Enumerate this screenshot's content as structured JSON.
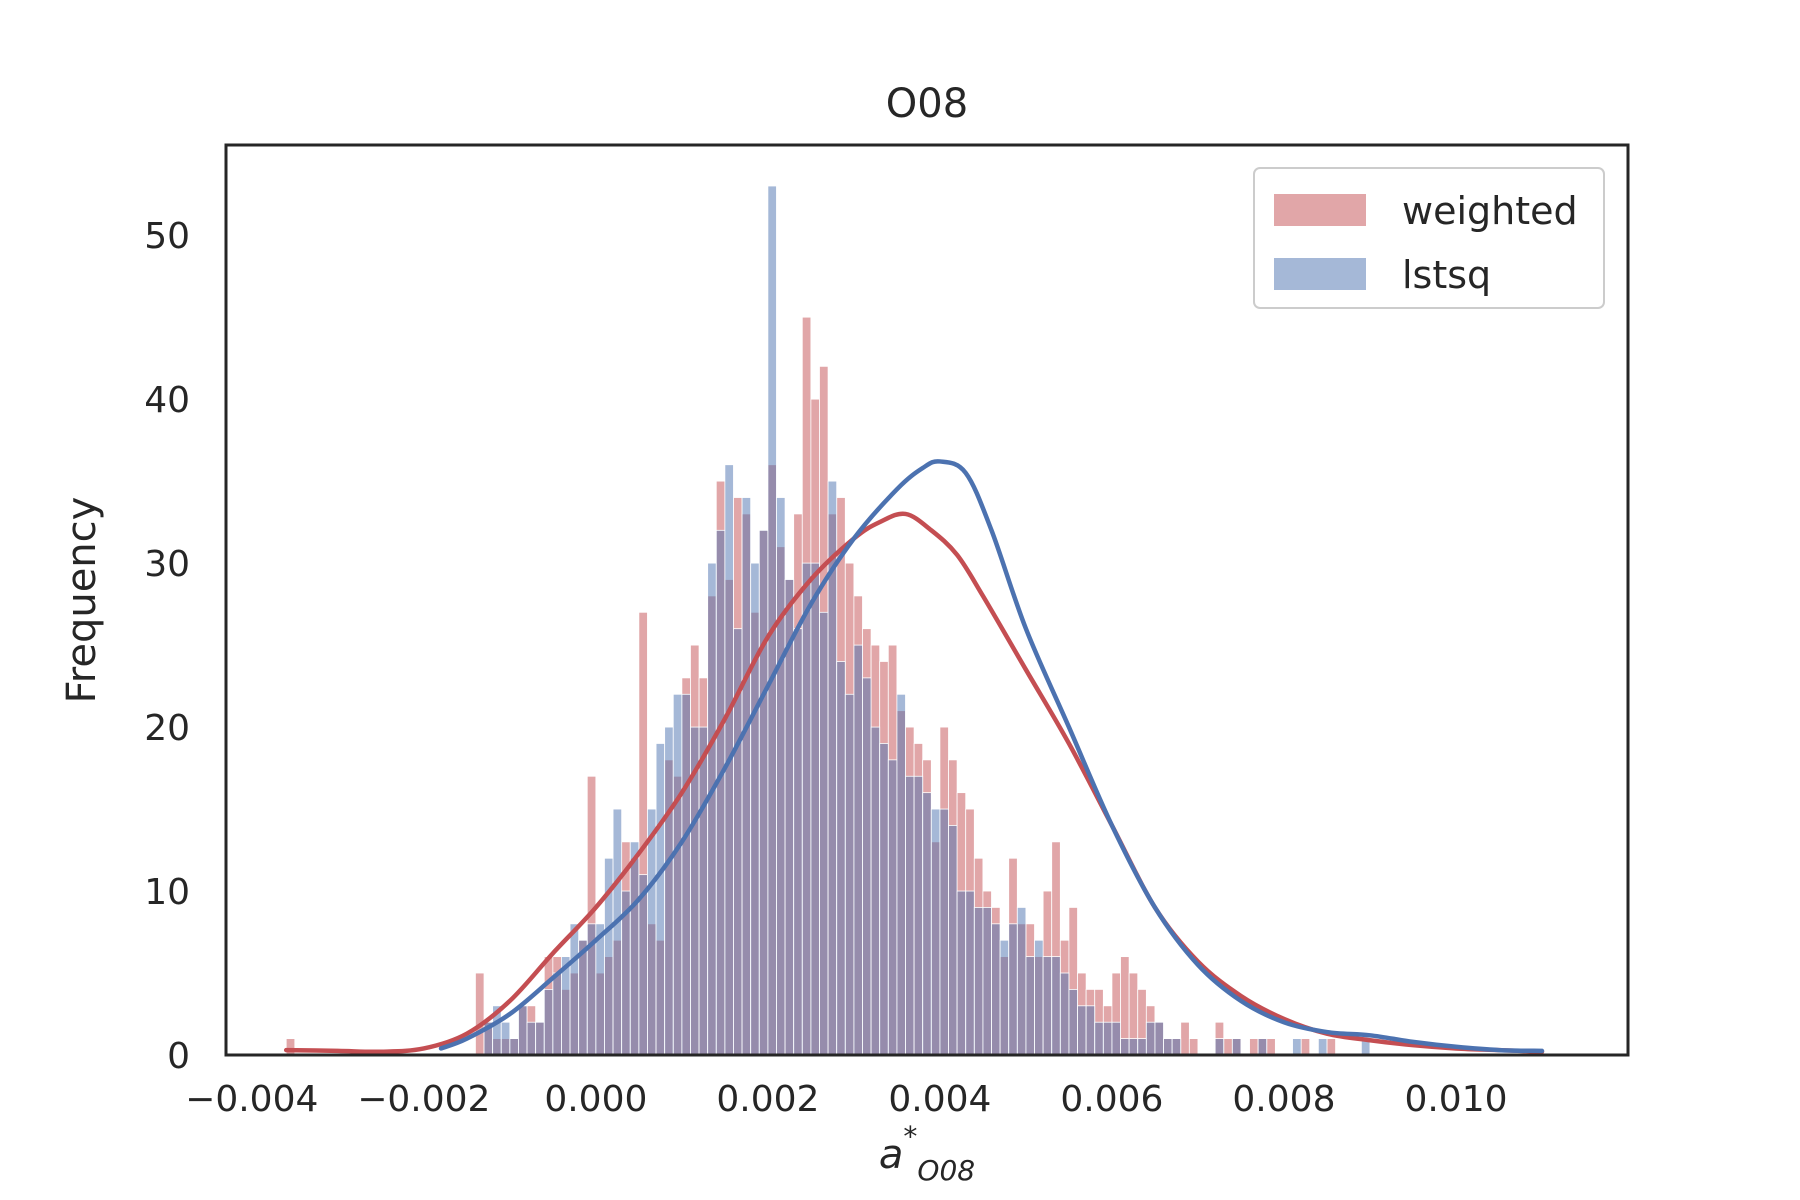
{
  "chart_data": {
    "type": "histogram",
    "title": "O08",
    "xlabel": "a*_O08",
    "xlabel_parts": {
      "base": "a",
      "sup": "*",
      "sub": "O08"
    },
    "ylabel": "Frequency",
    "xlim": [
      -0.0043,
      0.012
    ],
    "ylim": [
      0,
      55.5
    ],
    "xticks": [
      -0.004,
      -0.002,
      0.0,
      0.002,
      0.004,
      0.006,
      0.008,
      0.01
    ],
    "xtick_labels": [
      "−0.004",
      "−0.002",
      "0.000",
      "0.002",
      "0.004",
      "0.006",
      "0.008",
      "0.010"
    ],
    "yticks": [
      0,
      10,
      20,
      30,
      40,
      50
    ],
    "ytick_labels": [
      "0",
      "10",
      "20",
      "30",
      "40",
      "50"
    ],
    "grid": false,
    "legend_position": "top-right",
    "series": [
      {
        "name": "weighted",
        "color": "#c44e52",
        "bin_start": -0.0036,
        "bin_width": 0.0001,
        "counts": [
          1,
          0,
          0,
          0,
          0,
          0,
          0,
          0,
          0,
          0,
          0,
          0,
          0,
          0,
          0,
          0,
          0,
          0,
          0,
          0,
          0,
          0,
          5,
          2,
          1,
          1,
          1,
          3,
          3,
          2,
          6,
          6,
          4,
          5,
          7,
          17,
          5,
          6,
          7,
          13,
          12,
          27,
          8,
          7,
          18,
          17,
          23,
          25,
          23,
          28,
          35,
          29,
          34,
          33,
          27,
          32,
          36,
          31,
          29,
          33,
          45,
          40,
          42,
          33,
          34,
          30,
          28,
          26,
          25,
          24,
          25,
          21,
          20,
          19,
          18,
          13,
          20,
          18,
          16,
          15,
          12,
          10,
          9,
          6,
          12,
          8,
          8,
          6,
          10,
          13,
          7,
          9,
          5,
          4,
          4,
          3,
          5,
          6,
          5,
          4,
          3,
          2,
          1,
          1,
          2,
          1,
          0,
          0,
          2,
          1,
          1,
          0,
          1,
          1,
          1,
          0,
          0,
          0,
          1,
          0,
          0,
          1
        ]
      },
      {
        "name": "lstsq",
        "color": "#4c72b0",
        "bin_start": -0.0018,
        "bin_width": 0.0001,
        "counts": [
          0,
          0,
          0,
          0,
          0,
          2,
          3,
          2,
          1,
          3,
          2,
          2,
          4,
          5,
          6,
          8,
          7,
          8,
          8,
          12,
          15,
          10,
          13,
          11,
          15,
          19,
          20,
          22,
          22,
          20,
          20,
          30,
          32,
          36,
          26,
          34,
          30,
          32,
          53,
          34,
          29,
          26,
          30,
          30,
          27,
          35,
          24,
          22,
          25,
          23,
          20,
          19,
          18,
          22,
          17,
          17,
          16,
          15,
          15,
          14,
          10,
          10,
          9,
          9,
          8,
          7,
          8,
          9,
          6,
          7,
          6,
          6,
          5,
          4,
          3,
          3,
          2,
          2,
          2,
          1,
          1,
          1,
          2,
          2,
          1,
          1,
          0,
          0,
          0,
          0,
          1,
          0,
          1,
          0,
          0,
          1,
          0,
          0,
          0,
          1,
          0,
          0,
          1,
          0,
          0,
          0,
          0,
          1
        ]
      }
    ],
    "kde": [
      {
        "name": "weighted",
        "color": "#c44e52",
        "points": [
          [
            -0.0036,
            0.3
          ],
          [
            -0.003,
            0.25
          ],
          [
            -0.0025,
            0.2
          ],
          [
            -0.002,
            0.4
          ],
          [
            -0.0015,
            1.3
          ],
          [
            -0.001,
            3.3
          ],
          [
            -0.0005,
            6.2
          ],
          [
            0.0,
            9.0
          ],
          [
            0.0005,
            12.3
          ],
          [
            0.001,
            16.0
          ],
          [
            0.0015,
            20.5
          ],
          [
            0.002,
            25.5
          ],
          [
            0.0025,
            29.0
          ],
          [
            0.003,
            31.5
          ],
          [
            0.0033,
            32.5
          ],
          [
            0.0036,
            33.0
          ],
          [
            0.0039,
            32.0
          ],
          [
            0.0042,
            30.5
          ],
          [
            0.0045,
            28.0
          ],
          [
            0.005,
            23.5
          ],
          [
            0.0055,
            19.0
          ],
          [
            0.006,
            14.0
          ],
          [
            0.0065,
            9.0
          ],
          [
            0.007,
            5.7
          ],
          [
            0.0075,
            3.6
          ],
          [
            0.008,
            2.2
          ],
          [
            0.0085,
            1.3
          ],
          [
            0.009,
            0.9
          ],
          [
            0.0095,
            0.6
          ],
          [
            0.01,
            0.4
          ],
          [
            0.0105,
            0.3
          ],
          [
            0.011,
            0.2
          ]
        ]
      },
      {
        "name": "lstsq",
        "color": "#4c72b0",
        "points": [
          [
            -0.0018,
            0.4
          ],
          [
            -0.0015,
            1.0
          ],
          [
            -0.001,
            2.5
          ],
          [
            -0.0005,
            4.7
          ],
          [
            0.0,
            7.0
          ],
          [
            0.0005,
            9.5
          ],
          [
            0.001,
            13.0
          ],
          [
            0.0015,
            17.5
          ],
          [
            0.002,
            22.5
          ],
          [
            0.0025,
            27.5
          ],
          [
            0.003,
            31.5
          ],
          [
            0.0035,
            34.5
          ],
          [
            0.0038,
            35.8
          ],
          [
            0.004,
            36.2
          ],
          [
            0.0043,
            35.5
          ],
          [
            0.0046,
            32.0
          ],
          [
            0.005,
            26.0
          ],
          [
            0.0055,
            20.0
          ],
          [
            0.006,
            14.0
          ],
          [
            0.0065,
            9.0
          ],
          [
            0.007,
            5.5
          ],
          [
            0.0075,
            3.3
          ],
          [
            0.008,
            2.0
          ],
          [
            0.0085,
            1.4
          ],
          [
            0.009,
            1.2
          ],
          [
            0.0095,
            0.8
          ],
          [
            0.01,
            0.5
          ],
          [
            0.0105,
            0.3
          ],
          [
            0.011,
            0.25
          ]
        ]
      }
    ]
  }
}
